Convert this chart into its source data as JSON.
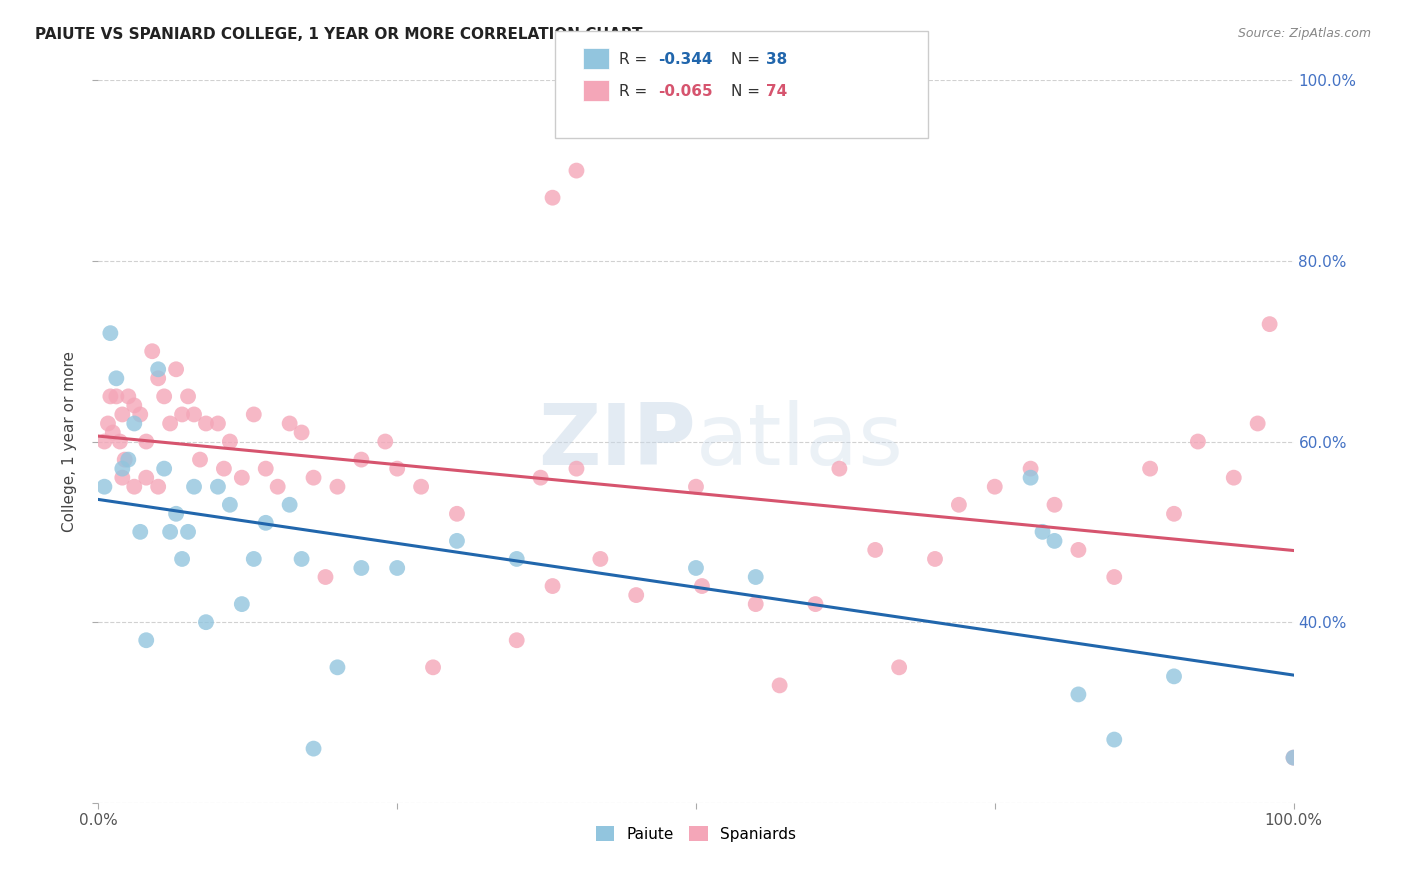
{
  "title": "PAIUTE VS SPANIARD COLLEGE, 1 YEAR OR MORE CORRELATION CHART",
  "source": "Source: ZipAtlas.com",
  "ylabel": "College, 1 year or more",
  "paiute_color": "#92c5de",
  "spaniard_color": "#f4a6b8",
  "paiute_line_color": "#2166ac",
  "spaniard_line_color": "#d6546e",
  "legend_r_paiute": "R = -0.344",
  "legend_n_paiute": "N = 38",
  "legend_r_spaniard": "R = -0.065",
  "legend_n_spaniard": "N = 74",
  "paiute_x": [
    0.5,
    1.0,
    1.5,
    2.0,
    2.5,
    3.0,
    3.5,
    4.0,
    5.0,
    5.5,
    6.0,
    6.5,
    7.0,
    7.5,
    8.0,
    9.0,
    10.0,
    11.0,
    12.0,
    13.0,
    14.0,
    16.0,
    17.0,
    18.0,
    20.0,
    22.0,
    25.0,
    30.0,
    35.0,
    50.0,
    55.0,
    78.0,
    79.0,
    80.0,
    82.0,
    85.0,
    90.0,
    100.0
  ],
  "paiute_y": [
    55.0,
    72.0,
    67.0,
    57.0,
    58.0,
    62.0,
    50.0,
    38.0,
    68.0,
    57.0,
    50.0,
    52.0,
    47.0,
    50.0,
    55.0,
    40.0,
    55.0,
    53.0,
    42.0,
    47.0,
    51.0,
    53.0,
    47.0,
    26.0,
    35.0,
    46.0,
    46.0,
    49.0,
    47.0,
    46.0,
    45.0,
    56.0,
    50.0,
    49.0,
    32.0,
    27.0,
    34.0,
    25.0
  ],
  "spaniard_x": [
    0.5,
    0.8,
    1.0,
    1.2,
    1.5,
    1.8,
    2.0,
    2.0,
    2.2,
    2.5,
    3.0,
    3.0,
    3.5,
    4.0,
    4.0,
    4.5,
    5.0,
    5.0,
    5.5,
    6.0,
    6.5,
    7.0,
    7.5,
    8.0,
    8.5,
    9.0,
    10.0,
    10.5,
    11.0,
    12.0,
    13.0,
    14.0,
    15.0,
    16.0,
    17.0,
    18.0,
    19.0,
    20.0,
    22.0,
    24.0,
    25.0,
    27.0,
    28.0,
    30.0,
    35.0,
    37.0,
    38.0,
    40.0,
    42.0,
    45.0,
    50.0,
    50.5,
    55.0,
    57.0,
    60.0,
    62.0,
    65.0,
    67.0,
    70.0,
    72.0,
    75.0,
    78.0,
    80.0,
    82.0,
    85.0,
    88.0,
    90.0,
    92.0,
    95.0,
    97.0,
    98.0,
    100.0,
    38.0,
    40.0
  ],
  "spaniard_y": [
    60.0,
    62.0,
    65.0,
    61.0,
    65.0,
    60.0,
    63.0,
    56.0,
    58.0,
    65.0,
    64.0,
    55.0,
    63.0,
    60.0,
    56.0,
    70.0,
    67.0,
    55.0,
    65.0,
    62.0,
    68.0,
    63.0,
    65.0,
    63.0,
    58.0,
    62.0,
    62.0,
    57.0,
    60.0,
    56.0,
    63.0,
    57.0,
    55.0,
    62.0,
    61.0,
    56.0,
    45.0,
    55.0,
    58.0,
    60.0,
    57.0,
    55.0,
    35.0,
    52.0,
    38.0,
    56.0,
    44.0,
    57.0,
    47.0,
    43.0,
    55.0,
    44.0,
    42.0,
    33.0,
    42.0,
    57.0,
    48.0,
    35.0,
    47.0,
    53.0,
    55.0,
    57.0,
    53.0,
    48.0,
    45.0,
    57.0,
    52.0,
    60.0,
    56.0,
    62.0,
    73.0,
    25.0,
    87.0,
    90.0
  ],
  "xlim": [
    0,
    100
  ],
  "ylim": [
    20,
    100
  ],
  "yticks": [
    20,
    40,
    60,
    80,
    100
  ],
  "ytick_labels_right": [
    "",
    "40.0%",
    "60.0%",
    "80.0%",
    "100.0%"
  ],
  "background_color": "#ffffff",
  "grid_color": "#cccccc"
}
